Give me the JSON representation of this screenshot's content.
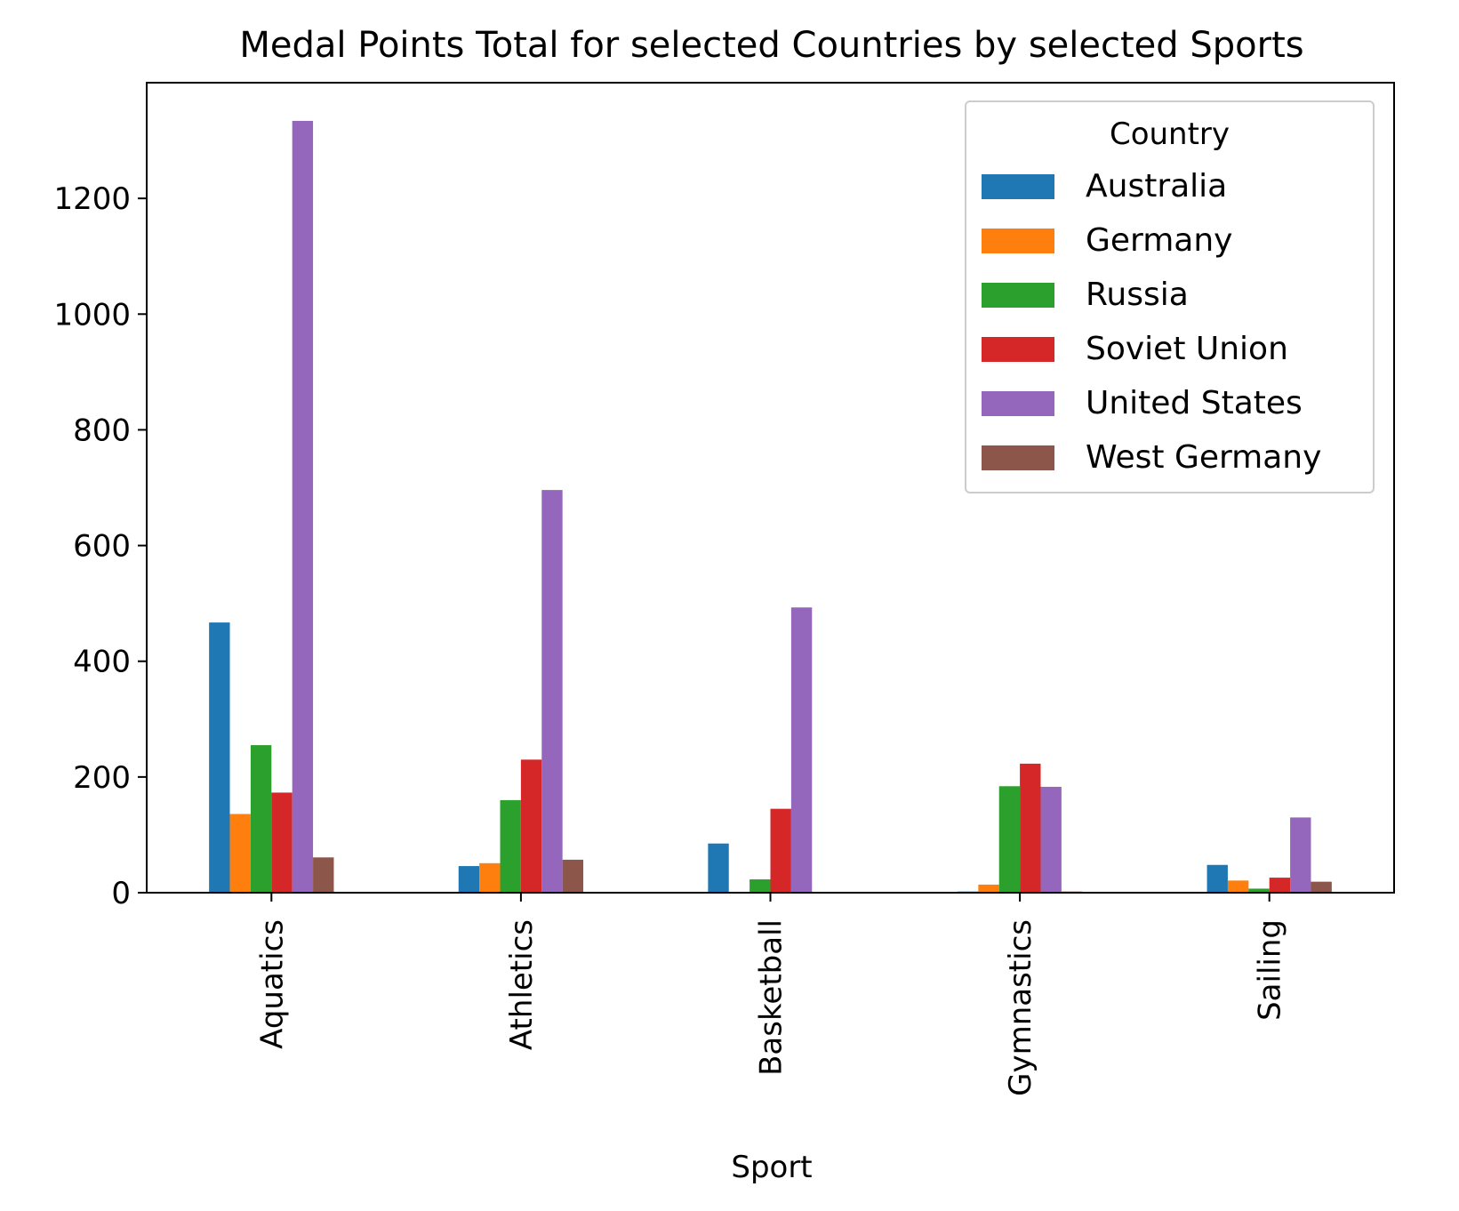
{
  "chart_data": {
    "type": "bar",
    "title": "Medal Points Total for selected Countries by selected Sports",
    "xlabel": "Sport",
    "ylabel": "",
    "categories": [
      "Aquatics",
      "Athletics",
      "Basketball",
      "Gymnastics",
      "Sailing"
    ],
    "ylim": [
      0,
      1400
    ],
    "yticks": [
      0,
      200,
      400,
      600,
      800,
      1000,
      1200
    ],
    "xtick_rotation": "vertical",
    "grid": false,
    "legend": {
      "title": "Country",
      "placement": "upper right"
    },
    "series": [
      {
        "name": "Australia",
        "color": "#1f77b4",
        "values": [
          467,
          46,
          85,
          2,
          48
        ]
      },
      {
        "name": "Germany",
        "color": "#ff7f0e",
        "values": [
          136,
          51,
          0,
          14,
          21
        ]
      },
      {
        "name": "Russia",
        "color": "#2ca02c",
        "values": [
          255,
          160,
          23,
          184,
          7
        ]
      },
      {
        "name": "Soviet Union",
        "color": "#d62728",
        "values": [
          173,
          230,
          145,
          223,
          26
        ]
      },
      {
        "name": "United States",
        "color": "#9467bd",
        "values": [
          1334,
          696,
          493,
          183,
          130
        ]
      },
      {
        "name": "West Germany",
        "color": "#8c564b",
        "values": [
          61,
          57,
          0,
          2,
          19
        ]
      }
    ]
  }
}
